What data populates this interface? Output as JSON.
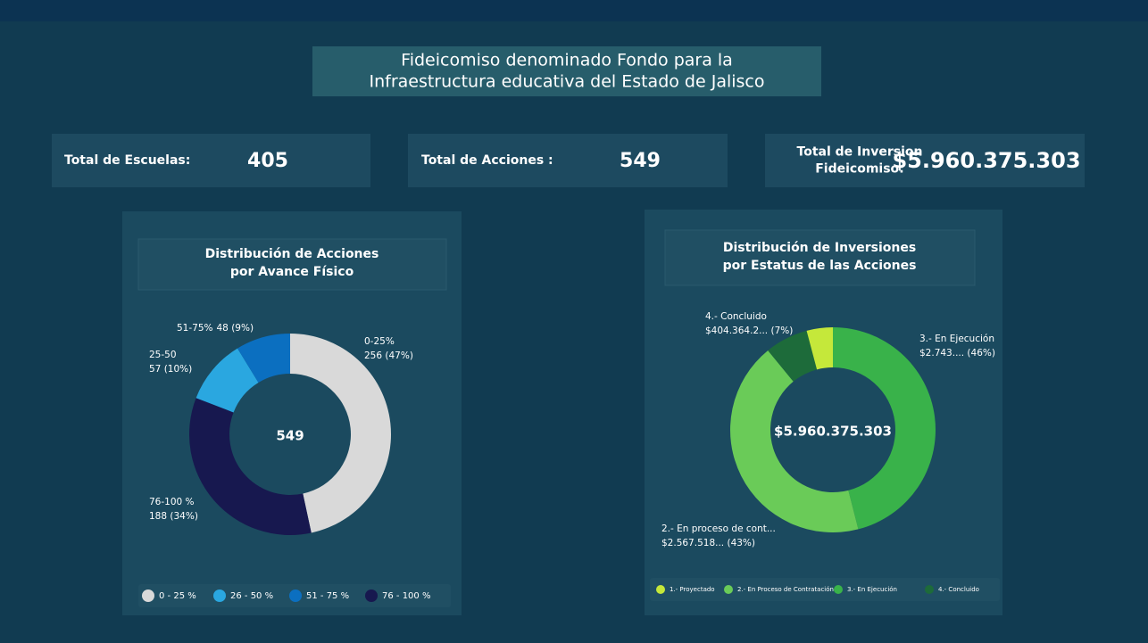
{
  "header": {
    "title_lines": [
      "Fideicomiso denominado Fondo para la",
      "Infraestructura educativa del Estado de Jalisco"
    ]
  },
  "kpis": [
    {
      "label_lines": [
        "Total de Escuelas:"
      ],
      "value": 405
    },
    {
      "label_lines": [
        "Total de Acciones :"
      ],
      "value": 549
    },
    {
      "label_lines": [
        "Total de Inversion",
        "Fideicomiso:"
      ],
      "value": "$5.960.375.303"
    }
  ],
  "chart_data": [
    {
      "type": "pie",
      "donut": true,
      "title_lines": [
        "Distribución de Acciones",
        "por Avance Físico"
      ],
      "categories": [
        "0-25%",
        "76-100 %",
        "25-50",
        "51-75%"
      ],
      "values": [
        256,
        188,
        57,
        48
      ],
      "value_labels": [
        "256 (47%)",
        "188 (34%)",
        "57 (10%)",
        "48 (9%)"
      ],
      "colors": [
        "#d9d9d9",
        "#17184f",
        "#2aa7e0",
        "#0b6fc0"
      ],
      "center_label": 549,
      "legend": [
        {
          "label": "0 - 25 %",
          "color": "#d9d9d9"
        },
        {
          "label": "26 - 50 %",
          "color": "#2aa7e0"
        },
        {
          "label": "51 - 75  %",
          "color": "#0b6fc0"
        },
        {
          "label": "76 - 100 %",
          "color": "#17184f"
        }
      ]
    },
    {
      "type": "pie",
      "donut": true,
      "title_lines": [
        "Distribución de Inversiones",
        "por Estatus de las Acciones"
      ],
      "categories": [
        "3.- En Ejecución",
        "2.- En proceso de cont...",
        "4.- Concluido",
        null
      ],
      "values": [
        2743000000,
        2567518000,
        404364200,
        245493103
      ],
      "value_labels": [
        "$2.743.... (46%)",
        "$2.567.518... (43%)",
        "$404.364.2... (7%)",
        null
      ],
      "colors": [
        "#39b24a",
        "#6acb58",
        "#1d6b3a",
        "#c5e83a"
      ],
      "center_label": "$5.960.375.303",
      "legend": [
        {
          "label": "1.- Proyectado",
          "color": "#c5e83a"
        },
        {
          "label": "2.- En Proceso de Contratación",
          "color": "#6acb58"
        },
        {
          "label": "3.- En Ejecución",
          "color": "#39b24a"
        },
        {
          "label": "4.- Concluido",
          "color": "#1d6b3a"
        }
      ]
    }
  ]
}
